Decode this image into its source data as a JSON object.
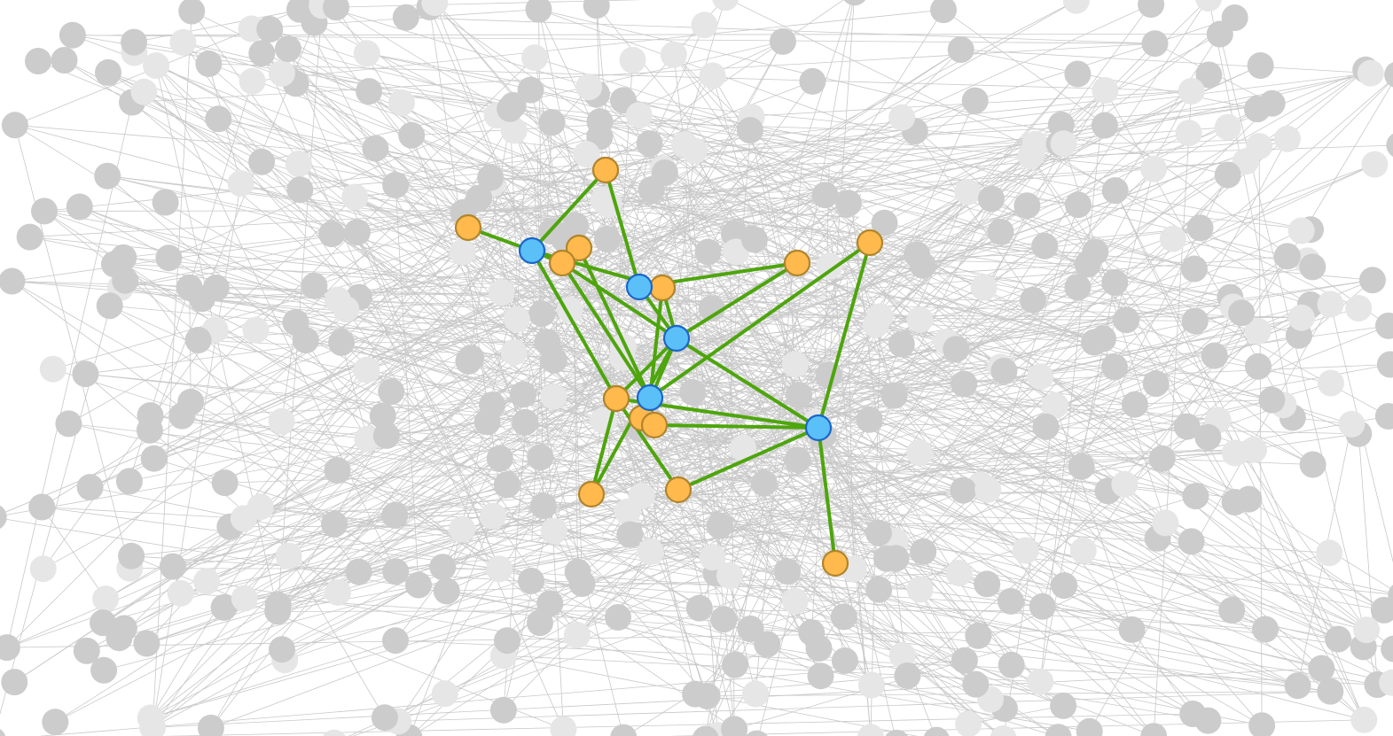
{
  "graph": {
    "description_colors": {
      "background_edge": "#c8c8c8",
      "highlight_edge": "#4ea50c",
      "gray_node": "#cccccc",
      "faded_node": "#e6e6e6",
      "orange_node_fill": "#ffb94c",
      "orange_node_stroke": "#b0852c",
      "blue_node_fill": "#5bc0f8",
      "blue_node_stroke": "#1b66c9"
    },
    "highlighted": {
      "blue_nodes": [
        "b1",
        "b2",
        "b3",
        "b4",
        "b5"
      ],
      "orange_nodes": [
        "o1",
        "o2",
        "o3",
        "o4",
        "o5",
        "o6",
        "o7",
        "o8",
        "o9",
        "o10",
        "o11",
        "o12",
        "o13",
        "o14"
      ],
      "edges": [
        [
          "o1",
          "b1"
        ],
        [
          "o2",
          "b1"
        ],
        [
          "o2",
          "b2"
        ],
        [
          "b1",
          "o4"
        ],
        [
          "b1",
          "o5"
        ],
        [
          "b1",
          "o8"
        ],
        [
          "o3",
          "b3"
        ],
        [
          "o4",
          "b3"
        ],
        [
          "o4",
          "b4"
        ],
        [
          "o5",
          "b4"
        ],
        [
          "o5",
          "b3"
        ],
        [
          "o6",
          "b4"
        ],
        [
          "b2",
          "b4"
        ],
        [
          "o7",
          "b3"
        ],
        [
          "o7",
          "b5"
        ],
        [
          "o10",
          "o9"
        ],
        [
          "o10",
          "b5"
        ],
        [
          "o9",
          "b4"
        ],
        [
          "b4",
          "b5"
        ],
        [
          "b4",
          "o11"
        ],
        [
          "o8",
          "o12"
        ],
        [
          "o8",
          "o11"
        ],
        [
          "b5",
          "o12"
        ],
        [
          "b5",
          "o13"
        ],
        [
          "b5",
          "o14"
        ],
        [
          "b4",
          "o14"
        ],
        [
          "o6",
          "b2"
        ]
      ]
    }
  }
}
